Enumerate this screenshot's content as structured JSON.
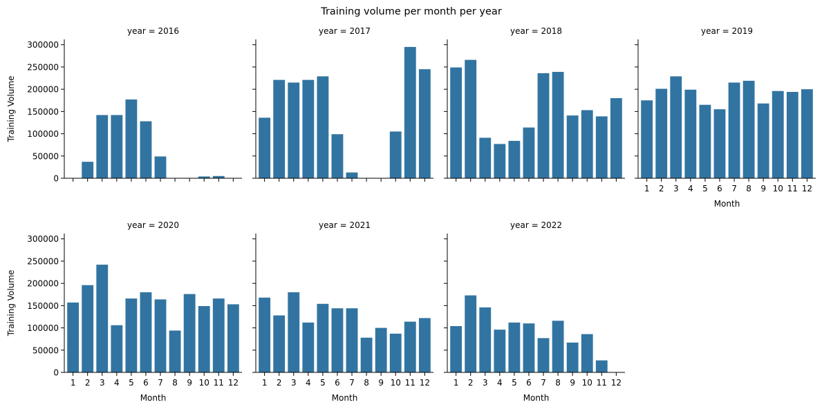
{
  "chart_data": {
    "type": "bar",
    "title": "Training volume per month per year",
    "xlabel": "Month",
    "ylabel": "Training Volume",
    "ylim": [
      0,
      312000
    ],
    "yticks": [
      0,
      50000,
      100000,
      150000,
      200000,
      250000,
      300000
    ],
    "categories": [
      "1",
      "2",
      "3",
      "4",
      "5",
      "6",
      "7",
      "8",
      "9",
      "10",
      "11",
      "12"
    ],
    "bar_color": "#3274a1",
    "grid": false,
    "facet_title_prefix": "year = ",
    "series": [
      {
        "name": "2016",
        "values": [
          0,
          37000,
          142000,
          142000,
          177000,
          128000,
          49000,
          0,
          0,
          4000,
          5000,
          0
        ]
      },
      {
        "name": "2017",
        "values": [
          136000,
          221000,
          215000,
          221000,
          229000,
          99000,
          13000,
          0,
          0,
          105000,
          295000,
          245000
        ]
      },
      {
        "name": "2018",
        "values": [
          249000,
          266000,
          91000,
          77000,
          84000,
          114000,
          236000,
          239000,
          141000,
          153000,
          139000,
          180000
        ]
      },
      {
        "name": "2019",
        "values": [
          175000,
          201000,
          229000,
          199000,
          165000,
          155000,
          215000,
          219000,
          168000,
          196000,
          194000,
          200000
        ]
      },
      {
        "name": "2020",
        "values": [
          157000,
          196000,
          242000,
          106000,
          166000,
          180000,
          164000,
          94000,
          176000,
          149000,
          166000,
          153000
        ]
      },
      {
        "name": "2021",
        "values": [
          168000,
          128000,
          180000,
          112000,
          154000,
          144000,
          144000,
          78000,
          100000,
          87000,
          114000,
          122000
        ]
      },
      {
        "name": "2022",
        "values": [
          104000,
          173000,
          146000,
          96000,
          112000,
          110000,
          77000,
          116000,
          67000,
          86000,
          27000,
          0
        ]
      }
    ]
  }
}
